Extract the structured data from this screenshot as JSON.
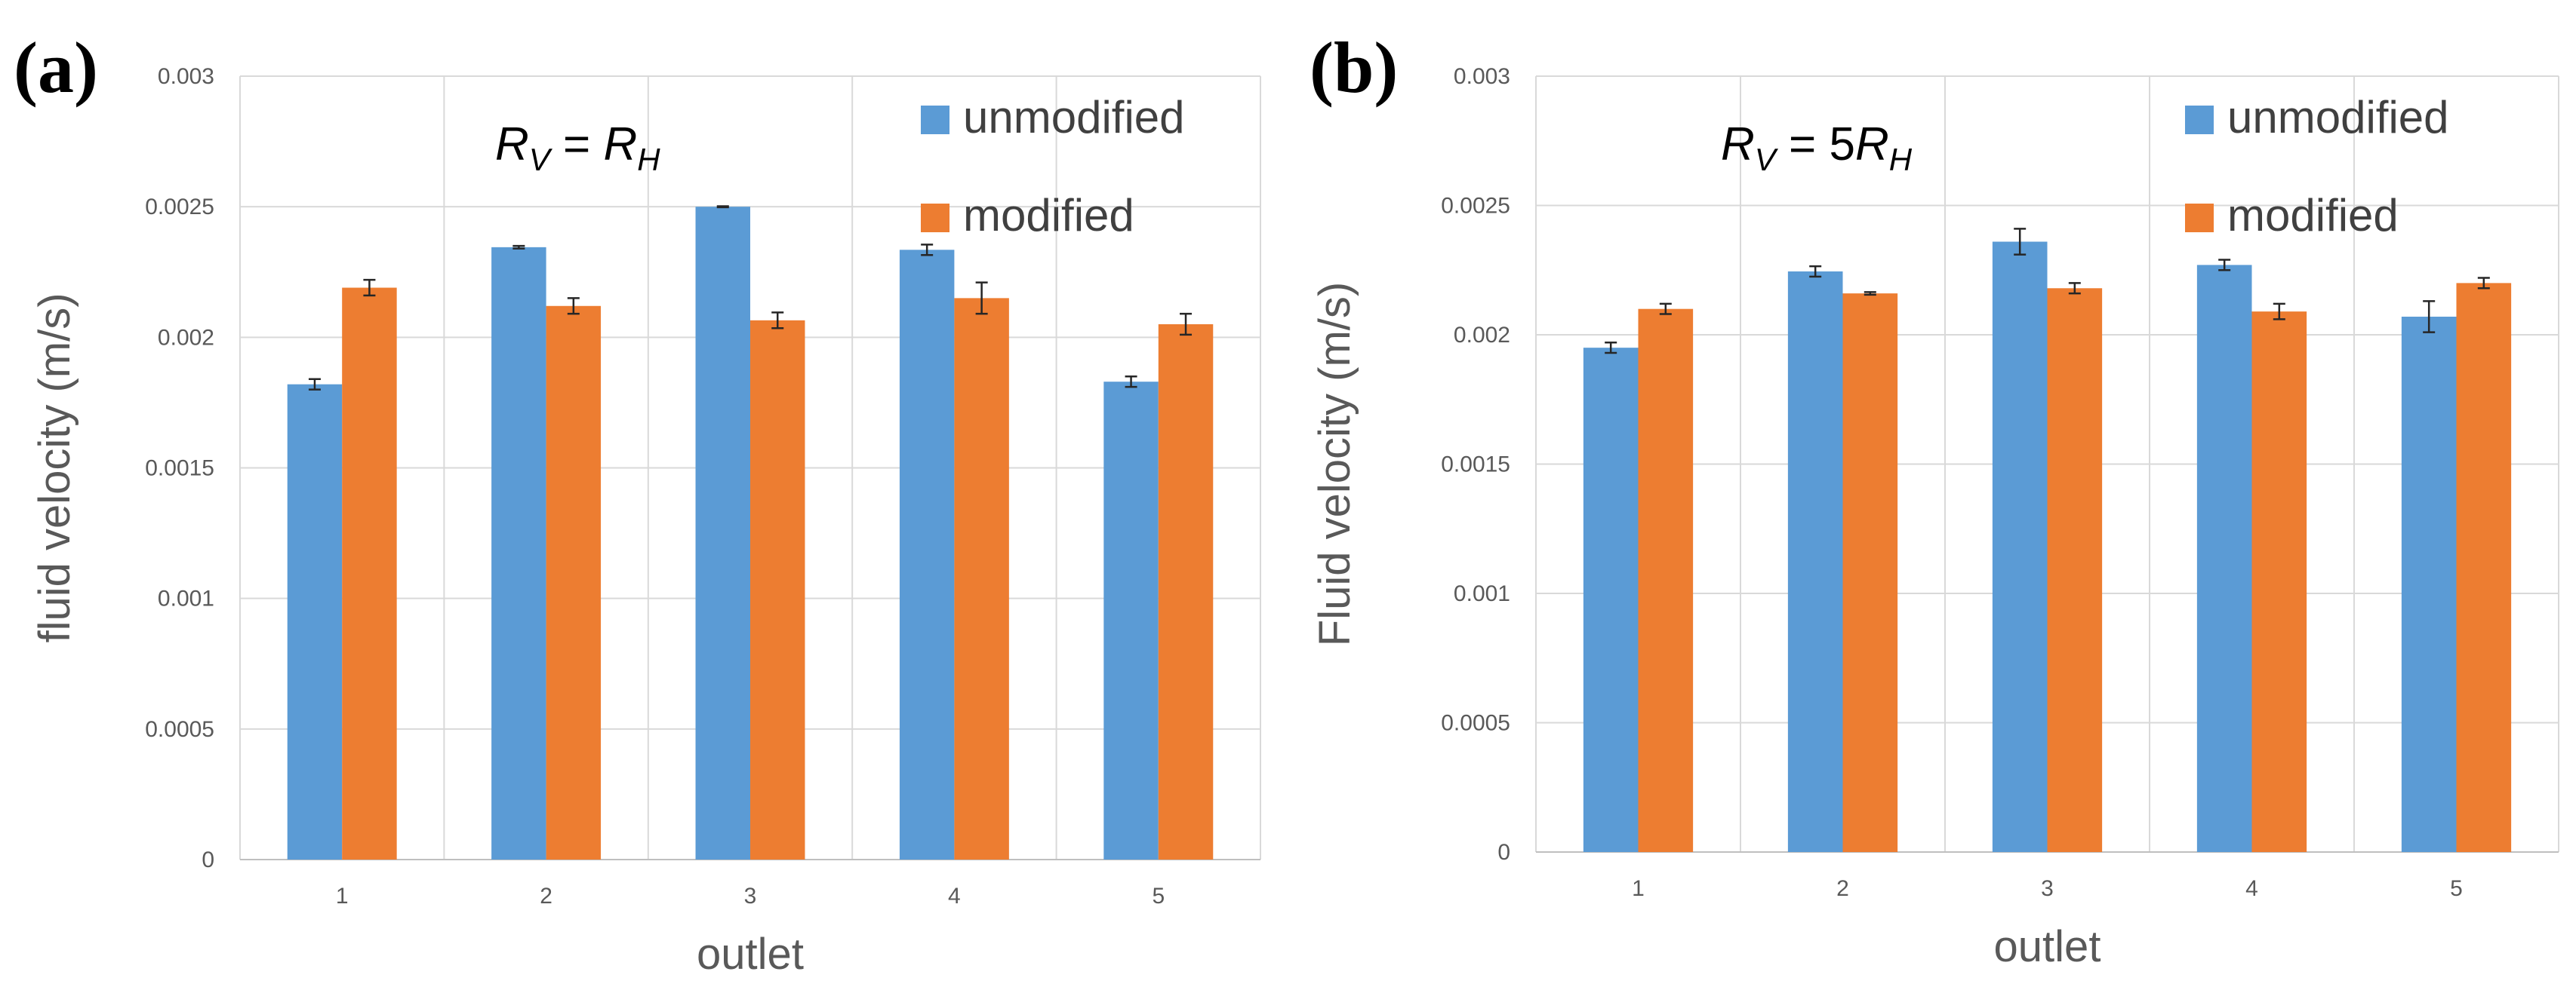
{
  "chart_data": [
    {
      "type": "bar",
      "panel_label": "(a)",
      "annotation": {
        "lhs": "R",
        "lhs_sub": "V",
        "op": " = ",
        "coef": "",
        "rhs": "R",
        "rhs_sub": "H"
      },
      "xlabel": "outlet",
      "ylabel": "fluid velocity (m/s)",
      "categories": [
        "1",
        "2",
        "3",
        "4",
        "5"
      ],
      "ylim": [
        0,
        0.003
      ],
      "yticks": [
        "0",
        "0.0005",
        "0.001",
        "0.0015",
        "0.002",
        "0.0025",
        "0.003"
      ],
      "grid": true,
      "legend_position": "top-right",
      "series": [
        {
          "name": "unmodified",
          "color": "#5B9BD5",
          "values": [
            0.00182,
            0.002345,
            0.0025,
            0.002335,
            0.00183
          ],
          "errors": [
            2e-05,
            5e-06,
            2e-06,
            2e-05,
            2e-05
          ]
        },
        {
          "name": "modified",
          "color": "#ED7D31",
          "values": [
            0.00219,
            0.00212,
            0.002065,
            0.00215,
            0.00205
          ],
          "errors": [
            3e-05,
            3e-05,
            3e-05,
            6e-05,
            4e-05
          ]
        }
      ]
    },
    {
      "type": "bar",
      "panel_label": "(b)",
      "annotation": {
        "lhs": "R",
        "lhs_sub": "V",
        "op": " = ",
        "coef": "5",
        "rhs": "R",
        "rhs_sub": "H"
      },
      "xlabel": "outlet",
      "ylabel": "Fluid velocity (m/s)",
      "categories": [
        "1",
        "2",
        "3",
        "4",
        "5"
      ],
      "ylim": [
        0,
        0.003
      ],
      "yticks": [
        "0",
        "0.0005",
        "0.001",
        "0.0015",
        "0.002",
        "0.0025",
        "0.003"
      ],
      "grid": true,
      "legend_position": "top-right",
      "series": [
        {
          "name": "unmodified",
          "color": "#5B9BD5",
          "values": [
            0.00195,
            0.002245,
            0.00236,
            0.00227,
            0.00207
          ],
          "errors": [
            2e-05,
            2e-05,
            5e-05,
            2e-05,
            6e-05
          ]
        },
        {
          "name": "modified",
          "color": "#ED7D31",
          "values": [
            0.0021,
            0.00216,
            0.00218,
            0.00209,
            0.0022
          ],
          "errors": [
            2e-05,
            5e-06,
            2e-05,
            3e-05,
            2e-05
          ]
        }
      ]
    }
  ]
}
